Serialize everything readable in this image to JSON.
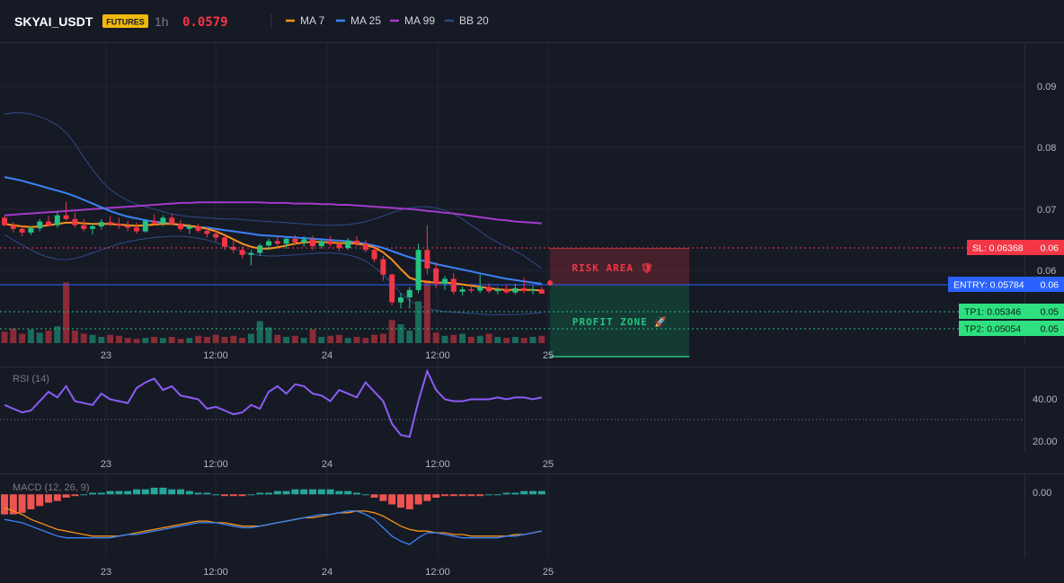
{
  "header": {
    "symbol": "SKYAI_USDT",
    "market_badge": "FUTURES",
    "interval": "1h",
    "last_price": "0.0579",
    "legend": [
      {
        "label": "MA 7",
        "color": "#f7931a"
      },
      {
        "label": "MA 25",
        "color": "#3b82f6"
      },
      {
        "label": "MA 99",
        "color": "#a23bc9"
      },
      {
        "label": "BB 20",
        "color": "#2f4a8a"
      }
    ]
  },
  "colors": {
    "background": "#161a25",
    "up": "#26c281",
    "down": "#f23645",
    "vol_up": "#1b6b5c",
    "vol_down": "#8a2b36",
    "ma7": "#f7931a",
    "ma25": "#3b82f6",
    "ma99": "#a23bc9",
    "bb": "#2f4a8a",
    "rsi": "#8b5cf6",
    "macd_line": "#3b82f6",
    "signal_line": "#f7931a",
    "hist_pos": "#26a69a",
    "hist_neg": "#ef5350",
    "risk": "#f23645",
    "profit": "#0fae6e",
    "entry": "#2962ff"
  },
  "x_axis": {
    "tick_labels": [
      "23",
      "12:00",
      "24",
      "12:00",
      "25"
    ]
  },
  "price_axis": {
    "tick_labels": [
      "0.09",
      "0.08",
      "0.07",
      "0.06"
    ]
  },
  "levels": {
    "sl": {
      "label": "SL: 0.06368",
      "value": 0.06368,
      "axis_label": "0.06"
    },
    "entry": {
      "label": "ENTRY: 0.05784",
      "value": 0.05784,
      "axis_label": "0.06"
    },
    "tp1": {
      "label": "TP1: 0.05346",
      "value": 0.05346,
      "axis_label": "0.05"
    },
    "tp2": {
      "label": "TP2: 0.05054",
      "value": 0.05054,
      "axis_label": "0.05"
    }
  },
  "zones": {
    "risk_label": "RISK AREA 🛡",
    "profit_label": "PROFIT ZONE 🚀"
  },
  "rsi": {
    "title": "RSI (14)",
    "tick_labels": [
      "40.00",
      "20.00"
    ]
  },
  "macd": {
    "title": "MACD (12, 26, 9)",
    "tick_labels": [
      "0.00"
    ]
  },
  "chart_data": {
    "type": "candlestick",
    "price_range": [
      0.0445,
      0.0985
    ],
    "candles": [
      [
        0.0702,
        0.0705,
        0.0688,
        0.069
      ],
      [
        0.069,
        0.0695,
        0.0678,
        0.0684
      ],
      [
        0.0684,
        0.069,
        0.0672,
        0.0678
      ],
      [
        0.0678,
        0.0688,
        0.0674,
        0.0685
      ],
      [
        0.0685,
        0.07,
        0.068,
        0.0696
      ],
      [
        0.0696,
        0.0705,
        0.0688,
        0.069
      ],
      [
        0.069,
        0.0712,
        0.0686,
        0.0706
      ],
      [
        0.0706,
        0.0728,
        0.0698,
        0.07
      ],
      [
        0.07,
        0.071,
        0.0686,
        0.069
      ],
      [
        0.069,
        0.07,
        0.068,
        0.0684
      ],
      [
        0.0684,
        0.0693,
        0.0675,
        0.0688
      ],
      [
        0.0688,
        0.07,
        0.0683,
        0.0695
      ],
      [
        0.0695,
        0.0705,
        0.0688,
        0.0692
      ],
      [
        0.0692,
        0.0702,
        0.0684,
        0.0689
      ],
      [
        0.0689,
        0.0697,
        0.068,
        0.0686
      ],
      [
        0.0686,
        0.0694,
        0.0676,
        0.068
      ],
      [
        0.068,
        0.07,
        0.0678,
        0.0697
      ],
      [
        0.0697,
        0.0708,
        0.069,
        0.0693
      ],
      [
        0.0693,
        0.0706,
        0.0688,
        0.0702
      ],
      [
        0.0702,
        0.0708,
        0.069,
        0.0692
      ],
      [
        0.0692,
        0.0698,
        0.068,
        0.0684
      ],
      [
        0.0684,
        0.0692,
        0.0676,
        0.0688
      ],
      [
        0.0688,
        0.0692,
        0.0678,
        0.0681
      ],
      [
        0.0681,
        0.0687,
        0.067,
        0.0676
      ],
      [
        0.0676,
        0.0684,
        0.0664,
        0.067
      ],
      [
        0.067,
        0.0674,
        0.065,
        0.0655
      ],
      [
        0.0655,
        0.0666,
        0.0645,
        0.065
      ],
      [
        0.065,
        0.0656,
        0.0636,
        0.0642
      ],
      [
        0.0642,
        0.065,
        0.0625,
        0.0645
      ],
      [
        0.0645,
        0.066,
        0.064,
        0.0657
      ],
      [
        0.0657,
        0.0668,
        0.065,
        0.0664
      ],
      [
        0.0664,
        0.0672,
        0.0656,
        0.066
      ],
      [
        0.066,
        0.067,
        0.0652,
        0.0668
      ],
      [
        0.0668,
        0.0674,
        0.0658,
        0.0662
      ],
      [
        0.0662,
        0.0672,
        0.0655,
        0.0667
      ],
      [
        0.0667,
        0.0673,
        0.065,
        0.0656
      ],
      [
        0.0656,
        0.0668,
        0.0652,
        0.0664
      ],
      [
        0.0664,
        0.0672,
        0.0655,
        0.0659
      ],
      [
        0.0659,
        0.0666,
        0.0648,
        0.0653
      ],
      [
        0.0653,
        0.0669,
        0.065,
        0.0665
      ],
      [
        0.0665,
        0.0672,
        0.0656,
        0.066
      ],
      [
        0.066,
        0.0666,
        0.0646,
        0.065
      ],
      [
        0.065,
        0.0655,
        0.063,
        0.0635
      ],
      [
        0.0635,
        0.064,
        0.06,
        0.061
      ],
      [
        0.061,
        0.0612,
        0.056,
        0.0565
      ],
      [
        0.0565,
        0.058,
        0.0555,
        0.0573
      ],
      [
        0.0573,
        0.059,
        0.0555,
        0.0585
      ],
      [
        0.0585,
        0.066,
        0.058,
        0.065
      ],
      [
        0.065,
        0.069,
        0.061,
        0.062
      ],
      [
        0.062,
        0.063,
        0.0588,
        0.0595
      ],
      [
        0.0595,
        0.0608,
        0.0585,
        0.0603
      ],
      [
        0.0603,
        0.0612,
        0.0578,
        0.0582
      ],
      [
        0.0582,
        0.059,
        0.0576,
        0.0586
      ],
      [
        0.0586,
        0.0595,
        0.058,
        0.0584
      ],
      [
        0.0584,
        0.061,
        0.058,
        0.059
      ],
      [
        0.059,
        0.0596,
        0.058,
        0.0583
      ],
      [
        0.0583,
        0.059,
        0.0578,
        0.0586
      ],
      [
        0.0586,
        0.0592,
        0.0579,
        0.0581
      ],
      [
        0.0581,
        0.0595,
        0.0578,
        0.0588
      ],
      [
        0.0588,
        0.0605,
        0.058,
        0.0584
      ],
      [
        0.0584,
        0.0592,
        0.0578,
        0.0586
      ],
      [
        0.0586,
        0.059,
        0.0579,
        0.0579
      ]
    ],
    "volume": [
      11,
      14,
      9,
      13,
      10,
      12,
      16,
      58,
      12,
      9,
      8,
      6,
      8,
      7,
      5,
      4,
      5,
      6,
      5,
      6,
      4,
      5,
      7,
      6,
      8,
      6,
      7,
      5,
      9,
      21,
      15,
      8,
      6,
      7,
      5,
      13,
      6,
      7,
      8,
      5,
      6,
      5,
      8,
      9,
      22,
      18,
      12,
      40,
      60,
      10,
      7,
      8,
      9,
      6,
      7,
      9,
      6,
      5,
      6,
      5,
      6,
      7
    ],
    "ma7": [
      0.0692,
      0.069,
      0.0688,
      0.0687,
      0.0688,
      0.069,
      0.0692,
      0.0694,
      0.0694,
      0.0693,
      0.0692,
      0.0692,
      0.0692,
      0.0691,
      0.069,
      0.0689,
      0.069,
      0.0691,
      0.0692,
      0.0692,
      0.0691,
      0.0689,
      0.0687,
      0.0684,
      0.068,
      0.0674,
      0.0667,
      0.066,
      0.0655,
      0.0652,
      0.0652,
      0.0654,
      0.0657,
      0.066,
      0.0662,
      0.0663,
      0.0663,
      0.0662,
      0.0661,
      0.0661,
      0.066,
      0.0658,
      0.0654,
      0.0646,
      0.0634,
      0.0619,
      0.0605,
      0.06,
      0.0598,
      0.0597,
      0.0597,
      0.0596,
      0.0594,
      0.0592,
      0.059,
      0.0588,
      0.0586,
      0.0585,
      0.0585,
      0.0585,
      0.0585,
      0.0584
    ],
    "ma25": [
      0.0768,
      0.0765,
      0.0762,
      0.0758,
      0.0754,
      0.075,
      0.0746,
      0.0742,
      0.0737,
      0.0731,
      0.0725,
      0.0719,
      0.0713,
      0.0708,
      0.0704,
      0.0701,
      0.0698,
      0.0696,
      0.0694,
      0.0692,
      0.069,
      0.0688,
      0.0687,
      0.0686,
      0.0684,
      0.0682,
      0.068,
      0.0678,
      0.0676,
      0.0674,
      0.0673,
      0.0672,
      0.0671,
      0.067,
      0.0669,
      0.0668,
      0.0667,
      0.0666,
      0.0665,
      0.0664,
      0.0662,
      0.066,
      0.0657,
      0.0653,
      0.0648,
      0.0643,
      0.0638,
      0.0634,
      0.0631,
      0.0627,
      0.0624,
      0.0621,
      0.0618,
      0.0615,
      0.0612,
      0.0609,
      0.0606,
      0.0603,
      0.0601,
      0.0599,
      0.0597,
      0.0595
    ],
    "ma99": [
      0.0706,
      0.0707,
      0.0708,
      0.0709,
      0.071,
      0.0711,
      0.0712,
      0.0713,
      0.0714,
      0.0715,
      0.0716,
      0.0717,
      0.0718,
      0.0719,
      0.072,
      0.0721,
      0.0722,
      0.0723,
      0.0724,
      0.0725,
      0.0726,
      0.0726,
      0.0727,
      0.0727,
      0.0727,
      0.0727,
      0.0727,
      0.0727,
      0.0727,
      0.0727,
      0.0726,
      0.0726,
      0.0726,
      0.0725,
      0.0725,
      0.0725,
      0.0724,
      0.0724,
      0.0723,
      0.0723,
      0.0722,
      0.0721,
      0.072,
      0.0719,
      0.0718,
      0.0717,
      0.0716,
      0.0715,
      0.0713,
      0.0712,
      0.071,
      0.0709,
      0.0707,
      0.0705,
      0.0703,
      0.0701,
      0.0699,
      0.0698,
      0.0696,
      0.0695,
      0.0694,
      0.0693
    ],
    "bb_upper": [
      0.087,
      0.0872,
      0.0872,
      0.087,
      0.0866,
      0.086,
      0.0852,
      0.084,
      0.0822,
      0.08,
      0.078,
      0.0762,
      0.0748,
      0.0738,
      0.073,
      0.0724,
      0.072,
      0.0716,
      0.0712,
      0.0708,
      0.0706,
      0.0704,
      0.0703,
      0.0702,
      0.0701,
      0.07,
      0.07,
      0.0699,
      0.0698,
      0.0697,
      0.0696,
      0.0695,
      0.0694,
      0.0693,
      0.0692,
      0.0691,
      0.069,
      0.069,
      0.069,
      0.0691,
      0.0693,
      0.0696,
      0.07,
      0.0705,
      0.071,
      0.0715,
      0.0718,
      0.072,
      0.072,
      0.0718,
      0.0714,
      0.0708,
      0.07,
      0.069,
      0.068,
      0.067,
      0.0662,
      0.0655,
      0.0648,
      0.064,
      0.063,
      0.062
    ],
    "bb_lower": [
      0.0675,
      0.0666,
      0.0658,
      0.065,
      0.0643,
      0.0638,
      0.0635,
      0.0634,
      0.0636,
      0.064,
      0.0645,
      0.065,
      0.0655,
      0.066,
      0.0663,
      0.0666,
      0.0668,
      0.067,
      0.0671,
      0.0672,
      0.0672,
      0.0671,
      0.0669,
      0.0666,
      0.0662,
      0.0657,
      0.0652,
      0.0647,
      0.0643,
      0.0641,
      0.064,
      0.064,
      0.0641,
      0.0642,
      0.0643,
      0.0644,
      0.0645,
      0.0645,
      0.0644,
      0.0642,
      0.0638,
      0.0632,
      0.0622,
      0.061,
      0.0595,
      0.058,
      0.0568,
      0.056,
      0.0555,
      0.0552,
      0.055,
      0.0549,
      0.0548,
      0.0547,
      0.0546,
      0.0545,
      0.0545,
      0.0545,
      0.0545,
      0.0546,
      0.0547,
      0.0548
    ],
    "rsi": [
      38,
      36,
      34,
      35,
      40,
      45,
      42,
      48,
      40,
      39,
      38,
      44,
      41,
      40,
      39,
      47,
      50,
      52,
      46,
      48,
      43,
      42,
      41,
      36,
      37,
      35,
      33,
      34,
      38,
      36,
      45,
      48,
      44,
      49,
      48,
      44,
      43,
      40,
      46,
      44,
      42,
      50,
      45,
      40,
      28,
      22,
      21,
      40,
      56,
      46,
      41,
      40,
      40,
      41,
      41,
      41,
      42,
      41,
      42,
      42,
      41,
      42
    ],
    "rsi_range": [
      13,
      58
    ],
    "rsi_reference": 30,
    "macd_hist": [
      -0.0012,
      -0.0012,
      -0.0011,
      -0.0009,
      -0.0007,
      -0.0005,
      -0.0004,
      -0.0002,
      -0.0001,
      0.0,
      0.0001,
      0.0001,
      0.0002,
      0.0002,
      0.0002,
      0.0003,
      0.0003,
      0.0004,
      0.0004,
      0.0003,
      0.0003,
      0.0002,
      0.0001,
      0.0001,
      0.0,
      -0.0001,
      -0.0001,
      -0.0001,
      0.0,
      0.0001,
      0.0001,
      0.0002,
      0.0002,
      0.0003,
      0.0003,
      0.0003,
      0.0003,
      0.0003,
      0.0002,
      0.0002,
      0.0001,
      0.0,
      -0.0002,
      -0.0004,
      -0.0006,
      -0.0008,
      -0.0009,
      -0.0006,
      -0.0004,
      -0.0002,
      -0.0001,
      -0.0001,
      -0.0001,
      -0.0001,
      -0.0001,
      0.0,
      0.0,
      0.0001,
      0.0001,
      0.0002,
      0.0002,
      0.0002
    ],
    "macd_line": [
      -0.0015,
      -0.0016,
      -0.0017,
      -0.0019,
      -0.0021,
      -0.0023,
      -0.0025,
      -0.0026,
      -0.0026,
      -0.0026,
      -0.0026,
      -0.0026,
      -0.0026,
      -0.0025,
      -0.0024,
      -0.0024,
      -0.0023,
      -0.0022,
      -0.0021,
      -0.002,
      -0.0019,
      -0.0018,
      -0.0017,
      -0.0017,
      -0.0017,
      -0.0018,
      -0.0019,
      -0.002,
      -0.002,
      -0.0019,
      -0.0018,
      -0.0017,
      -0.0016,
      -0.0015,
      -0.0014,
      -0.0013,
      -0.0012,
      -0.0012,
      -0.0011,
      -0.001,
      -0.001,
      -0.0012,
      -0.0015,
      -0.002,
      -0.0025,
      -0.0028,
      -0.003,
      -0.0026,
      -0.0023,
      -0.0023,
      -0.0024,
      -0.0025,
      -0.0026,
      -0.0026,
      -0.0026,
      -0.0026,
      -0.0026,
      -0.0025,
      -0.0025,
      -0.0024,
      -0.0023,
      -0.0022
    ],
    "signal_line": [
      -0.0008,
      -0.001,
      -0.0012,
      -0.0015,
      -0.0017,
      -0.0019,
      -0.0021,
      -0.0022,
      -0.0023,
      -0.0024,
      -0.0025,
      -0.0025,
      -0.0025,
      -0.0025,
      -0.0024,
      -0.0023,
      -0.0022,
      -0.0021,
      -0.002,
      -0.0019,
      -0.0018,
      -0.0017,
      -0.0016,
      -0.0016,
      -0.0017,
      -0.0017,
      -0.0018,
      -0.0019,
      -0.0019,
      -0.0019,
      -0.0018,
      -0.0017,
      -0.0016,
      -0.0015,
      -0.0014,
      -0.0014,
      -0.0013,
      -0.0012,
      -0.0011,
      -0.0011,
      -0.001,
      -0.001,
      -0.0011,
      -0.0013,
      -0.0016,
      -0.0019,
      -0.0021,
      -0.0022,
      -0.0022,
      -0.0023,
      -0.0023,
      -0.0024,
      -0.0024,
      -0.0025,
      -0.0025,
      -0.0025,
      -0.0025,
      -0.0025,
      -0.0024,
      -0.0024,
      -0.0023,
      -0.0022
    ],
    "macd_range": [
      -0.0038,
      0.0012
    ]
  }
}
